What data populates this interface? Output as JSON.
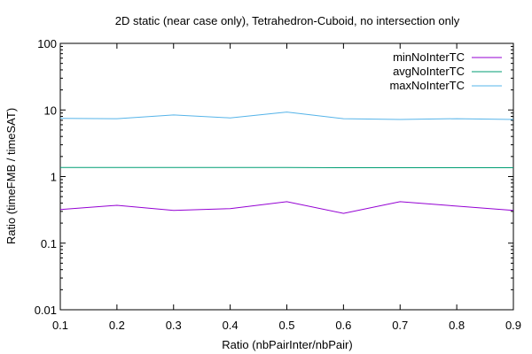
{
  "chart_data": {
    "type": "line",
    "title": "2D static (near case only), Tetrahedron-Cuboid, no intersection only",
    "xlabel": "Ratio (nbPairInter/nbPair)",
    "ylabel": "Ratio (timeFMB / timeSAT)",
    "xlim": [
      0.1,
      0.9
    ],
    "ylim": [
      0.01,
      100
    ],
    "yscale": "log",
    "grid": false,
    "legend_position": "top-right",
    "x_ticks": [
      "0.1",
      "0.2",
      "0.3",
      "0.4",
      "0.5",
      "0.6",
      "0.7",
      "0.8",
      "0.9"
    ],
    "y_ticks": [
      "0.01",
      "0.1",
      "1",
      "10",
      "100"
    ],
    "x": [
      0.1,
      0.2,
      0.3,
      0.4,
      0.5,
      0.6,
      0.7,
      0.8,
      0.9
    ],
    "series": [
      {
        "name": "minNoInterTC",
        "color": "#9400d3",
        "values": [
          0.32,
          0.37,
          0.31,
          0.33,
          0.42,
          0.28,
          0.42,
          0.36,
          0.31
        ]
      },
      {
        "name": "avgNoInterTC",
        "color": "#009e73",
        "values": [
          1.37,
          1.37,
          1.37,
          1.37,
          1.37,
          1.36,
          1.36,
          1.36,
          1.36
        ]
      },
      {
        "name": "maxNoInterTC",
        "color": "#56b4e9",
        "values": [
          7.5,
          7.4,
          8.4,
          7.6,
          9.3,
          7.4,
          7.2,
          7.4,
          7.2
        ]
      }
    ]
  }
}
